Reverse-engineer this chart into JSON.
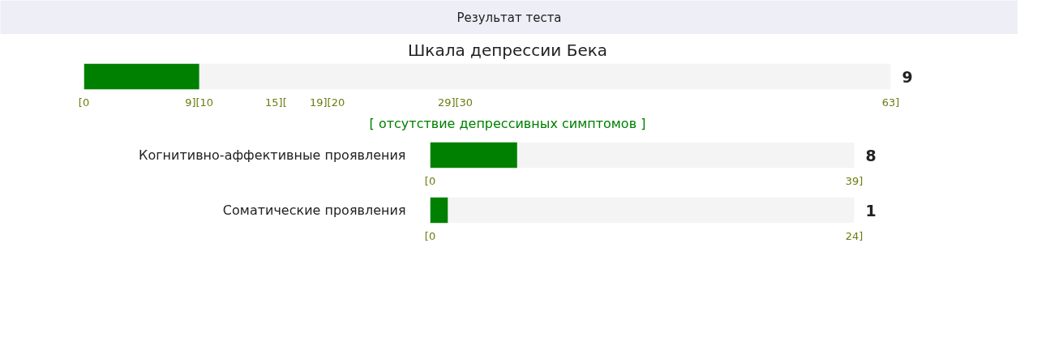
{
  "chart_data": [
    {
      "type": "other",
      "title": "Результат теста"
    },
    {
      "type": "bar",
      "orientation": "horizontal",
      "title": "Шкала депрессии Бека",
      "categories": [
        null
      ],
      "values": [
        9
      ],
      "color": "#008000",
      "xlim": [
        0,
        63
      ],
      "xticks": [
        {
          "value": 0,
          "label": "[0"
        },
        {
          "value": 9,
          "label": "9][10"
        },
        {
          "value": 15,
          "label": "15]["
        },
        {
          "value": 19,
          "label": "19][20"
        },
        {
          "value": 29,
          "label": "29][30"
        },
        {
          "value": 63,
          "label": "63]"
        }
      ],
      "annotations": [
        "9",
        "[ отсутствие депрессивных симптомов ]"
      ]
    },
    {
      "type": "bar",
      "orientation": "horizontal",
      "categories": [
        "Когнитивно-аффективные проявления"
      ],
      "values": [
        8
      ],
      "color": "#008000",
      "xlim": [
        0,
        39
      ],
      "xticks": [
        {
          "value": 0,
          "label": "[0"
        },
        {
          "value": 39,
          "label": "39]"
        }
      ],
      "annotations": [
        "8"
      ]
    },
    {
      "type": "bar",
      "orientation": "horizontal",
      "categories": [
        "Соматические проявления"
      ],
      "values": [
        1
      ],
      "color": "#008000",
      "xlim": [
        0,
        24
      ],
      "xticks": [
        {
          "value": 0,
          "label": "[0"
        },
        {
          "value": 24,
          "label": "24]"
        }
      ],
      "annotations": [
        "1"
      ]
    }
  ]
}
